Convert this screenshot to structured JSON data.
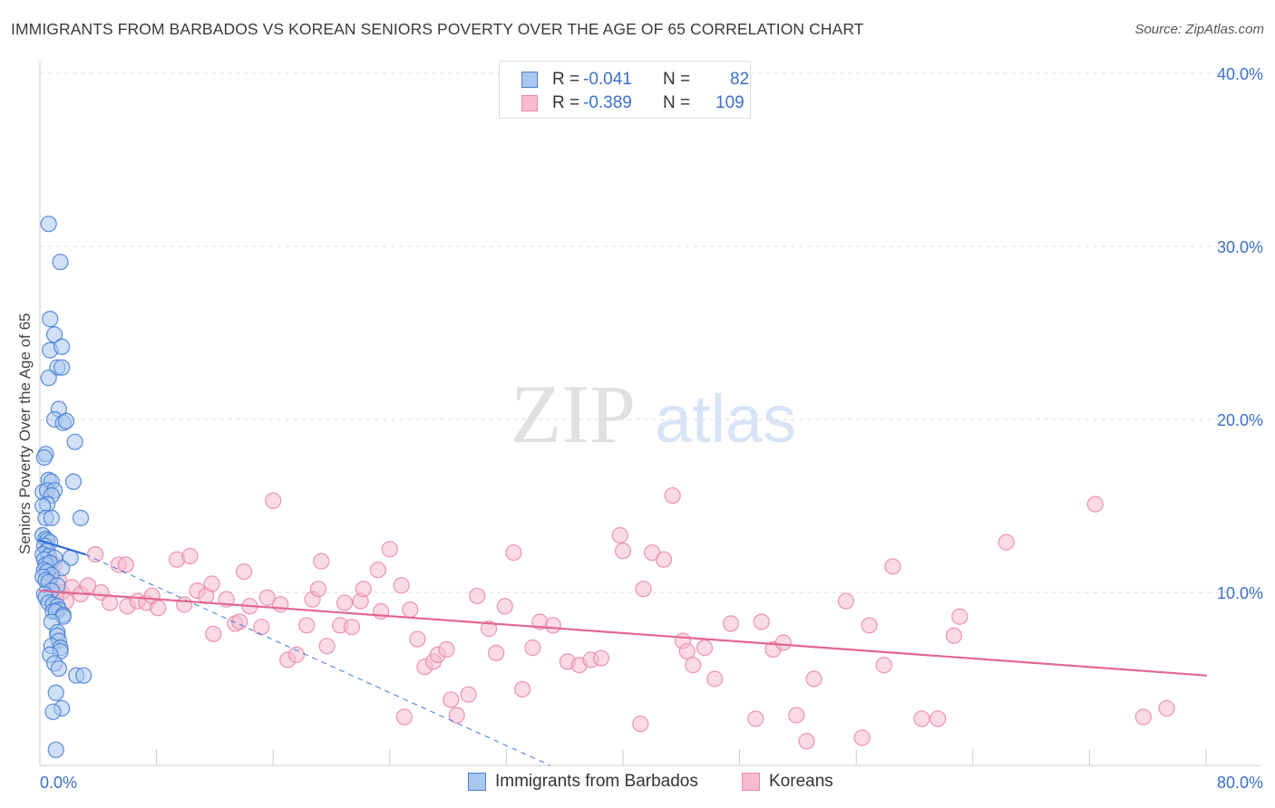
{
  "title": "IMMIGRANTS FROM BARBADOS VS KOREAN SENIORS POVERTY OVER THE AGE OF 65 CORRELATION CHART",
  "source": "Source: ZipAtlas.com",
  "watermark": {
    "zip": "ZIP",
    "atlas": "atlas"
  },
  "legend": {
    "series": [
      {
        "r_label": "R =",
        "r_value": "-0.041",
        "n_label": "N =",
        "n_value": "82"
      },
      {
        "r_label": "R =",
        "r_value": "-0.389",
        "n_label": "N =",
        "n_value": "109"
      }
    ]
  },
  "colors": {
    "blue_fill": "#a9c6ef",
    "blue_stroke": "#4a7fd6",
    "blue_line": "#2e6fd8",
    "pink_fill": "#f6bccd",
    "pink_stroke": "#e889a8",
    "pink_line": "#e2668f",
    "tick_label": "#3a6fc9",
    "grid": "#dcdcdc"
  },
  "chart_data": {
    "type": "scatter",
    "title": "IMMIGRANTS FROM BARBADOS VS KOREAN SENIORS POVERTY OVER THE AGE OF 65 CORRELATION CHART",
    "xlabel": "",
    "ylabel": "Seniors Poverty Over the Age of 65",
    "xlim": [
      0,
      80
    ],
    "ylim": [
      0,
      42
    ],
    "x_tick_labels": [
      {
        "value": 0,
        "label": "0.0%"
      },
      {
        "value": 80,
        "label": "80.0%"
      }
    ],
    "y_tick_labels": [
      {
        "value": 10,
        "label": "10.0%"
      },
      {
        "value": 20,
        "label": "20.0%"
      },
      {
        "value": 30,
        "label": "30.0%"
      },
      {
        "value": 40,
        "label": "40.0%"
      }
    ],
    "series": [
      {
        "name": "Immigrants from Barbados",
        "color": "blue",
        "trend_line": {
          "x": [
            0,
            3.1
          ],
          "y": [
            13.0,
            12.2
          ],
          "style": "solid"
        },
        "trend_extension": {
          "x": [
            3.1,
            35.0
          ],
          "y": [
            12.2,
            0.0
          ],
          "style": "dashed"
        },
        "points": [
          [
            0.6,
            31.3
          ],
          [
            1.4,
            29.1
          ],
          [
            0.7,
            25.8
          ],
          [
            1.0,
            24.9
          ],
          [
            0.7,
            24.0
          ],
          [
            1.5,
            24.2
          ],
          [
            1.2,
            23.0
          ],
          [
            1.5,
            23.0
          ],
          [
            0.6,
            22.4
          ],
          [
            1.3,
            20.6
          ],
          [
            1.0,
            20.0
          ],
          [
            1.6,
            19.8
          ],
          [
            1.8,
            19.9
          ],
          [
            2.4,
            18.7
          ],
          [
            0.4,
            18.0
          ],
          [
            0.3,
            17.8
          ],
          [
            0.6,
            16.5
          ],
          [
            0.8,
            16.4
          ],
          [
            2.3,
            16.4
          ],
          [
            0.2,
            15.8
          ],
          [
            0.5,
            15.9
          ],
          [
            1.0,
            15.9
          ],
          [
            0.8,
            15.6
          ],
          [
            0.5,
            15.1
          ],
          [
            0.2,
            15.0
          ],
          [
            0.4,
            14.3
          ],
          [
            0.8,
            14.3
          ],
          [
            2.8,
            14.3
          ],
          [
            0.2,
            13.3
          ],
          [
            0.4,
            13.1
          ],
          [
            0.5,
            13.0
          ],
          [
            0.7,
            12.9
          ],
          [
            0.3,
            12.7
          ],
          [
            0.5,
            12.4
          ],
          [
            0.2,
            12.2
          ],
          [
            0.6,
            12.1
          ],
          [
            1.0,
            12.0
          ],
          [
            2.1,
            12.0
          ],
          [
            0.3,
            11.9
          ],
          [
            0.4,
            11.6
          ],
          [
            0.7,
            11.7
          ],
          [
            1.5,
            11.4
          ],
          [
            0.3,
            11.3
          ],
          [
            0.5,
            11.2
          ],
          [
            0.8,
            11.0
          ],
          [
            0.2,
            10.9
          ],
          [
            0.4,
            10.7
          ],
          [
            0.6,
            10.6
          ],
          [
            1.2,
            10.4
          ],
          [
            0.8,
            10.1
          ],
          [
            0.3,
            9.9
          ],
          [
            0.4,
            9.7
          ],
          [
            0.6,
            9.4
          ],
          [
            0.9,
            9.3
          ],
          [
            1.2,
            9.2
          ],
          [
            1.3,
            9.0
          ],
          [
            0.9,
            8.9
          ],
          [
            1.1,
            8.9
          ],
          [
            1.6,
            8.7
          ],
          [
            1.6,
            8.6
          ],
          [
            0.8,
            8.3
          ],
          [
            1.2,
            7.7
          ],
          [
            1.2,
            7.5
          ],
          [
            1.3,
            7.2
          ],
          [
            0.8,
            6.9
          ],
          [
            1.4,
            6.8
          ],
          [
            1.4,
            6.6
          ],
          [
            0.7,
            6.4
          ],
          [
            1.0,
            5.9
          ],
          [
            1.3,
            5.6
          ],
          [
            2.5,
            5.2
          ],
          [
            3.0,
            5.2
          ],
          [
            1.1,
            4.2
          ],
          [
            1.5,
            3.3
          ],
          [
            0.9,
            3.1
          ],
          [
            1.1,
            0.9
          ]
        ]
      },
      {
        "name": "Koreans",
        "color": "pink",
        "trend_line": {
          "x": [
            0,
            80
          ],
          "y": [
            10.1,
            5.2
          ],
          "style": "solid"
        },
        "points": [
          [
            0.7,
            10.7
          ],
          [
            1.0,
            11.6
          ],
          [
            1.3,
            10.7
          ],
          [
            1.5,
            10.0
          ],
          [
            1.8,
            9.5
          ],
          [
            1.1,
            9.8
          ],
          [
            2.2,
            10.3
          ],
          [
            2.8,
            9.9
          ],
          [
            3.3,
            10.4
          ],
          [
            3.8,
            12.2
          ],
          [
            4.2,
            10.0
          ],
          [
            4.8,
            9.4
          ],
          [
            5.4,
            11.6
          ],
          [
            6.0,
            9.2
          ],
          [
            5.9,
            11.6
          ],
          [
            6.7,
            9.5
          ],
          [
            7.3,
            9.4
          ],
          [
            7.7,
            9.8
          ],
          [
            8.1,
            9.1
          ],
          [
            9.4,
            11.9
          ],
          [
            9.9,
            9.3
          ],
          [
            10.3,
            12.1
          ],
          [
            10.8,
            10.1
          ],
          [
            11.4,
            9.8
          ],
          [
            11.8,
            10.5
          ],
          [
            11.9,
            7.6
          ],
          [
            12.8,
            9.6
          ],
          [
            13.4,
            8.2
          ],
          [
            13.7,
            8.3
          ],
          [
            14.0,
            11.2
          ],
          [
            14.4,
            9.2
          ],
          [
            15.2,
            8.0
          ],
          [
            15.6,
            9.7
          ],
          [
            16.0,
            15.3
          ],
          [
            16.5,
            9.3
          ],
          [
            17.0,
            6.1
          ],
          [
            17.6,
            6.4
          ],
          [
            18.3,
            8.1
          ],
          [
            18.7,
            9.6
          ],
          [
            19.1,
            10.2
          ],
          [
            19.3,
            11.8
          ],
          [
            19.7,
            6.9
          ],
          [
            20.6,
            8.1
          ],
          [
            20.9,
            9.4
          ],
          [
            21.4,
            8.0
          ],
          [
            22.0,
            9.5
          ],
          [
            22.2,
            10.2
          ],
          [
            23.2,
            11.3
          ],
          [
            23.4,
            8.9
          ],
          [
            24.0,
            12.5
          ],
          [
            24.8,
            10.4
          ],
          [
            25.0,
            2.8
          ],
          [
            25.4,
            9.0
          ],
          [
            25.9,
            7.3
          ],
          [
            26.4,
            5.7
          ],
          [
            27.0,
            6.0
          ],
          [
            27.3,
            6.4
          ],
          [
            27.9,
            6.7
          ],
          [
            28.2,
            3.8
          ],
          [
            28.6,
            2.9
          ],
          [
            29.4,
            4.1
          ],
          [
            30.0,
            9.8
          ],
          [
            30.8,
            7.9
          ],
          [
            31.3,
            6.5
          ],
          [
            31.9,
            9.2
          ],
          [
            32.5,
            12.3
          ],
          [
            33.1,
            4.4
          ],
          [
            33.8,
            6.8
          ],
          [
            34.3,
            8.3
          ],
          [
            35.2,
            8.1
          ],
          [
            36.2,
            6.0
          ],
          [
            37.0,
            5.8
          ],
          [
            37.8,
            6.1
          ],
          [
            38.5,
            6.2
          ],
          [
            39.8,
            13.3
          ],
          [
            40.0,
            12.4
          ],
          [
            41.2,
            2.4
          ],
          [
            41.4,
            10.2
          ],
          [
            42.0,
            12.3
          ],
          [
            42.8,
            11.9
          ],
          [
            43.4,
            15.6
          ],
          [
            44.1,
            7.2
          ],
          [
            44.4,
            6.6
          ],
          [
            44.8,
            5.8
          ],
          [
            45.6,
            6.8
          ],
          [
            46.3,
            5.0
          ],
          [
            47.4,
            8.2
          ],
          [
            49.1,
            2.7
          ],
          [
            49.5,
            8.3
          ],
          [
            50.3,
            6.7
          ],
          [
            51.0,
            7.1
          ],
          [
            51.9,
            2.9
          ],
          [
            52.6,
            1.4
          ],
          [
            53.1,
            5.0
          ],
          [
            55.3,
            9.5
          ],
          [
            56.4,
            1.6
          ],
          [
            56.9,
            8.1
          ],
          [
            57.9,
            5.8
          ],
          [
            58.5,
            11.5
          ],
          [
            60.5,
            2.7
          ],
          [
            61.6,
            2.7
          ],
          [
            62.7,
            7.5
          ],
          [
            63.1,
            8.6
          ],
          [
            66.3,
            12.9
          ],
          [
            72.4,
            15.1
          ],
          [
            75.7,
            2.8
          ],
          [
            77.3,
            3.3
          ]
        ]
      }
    ],
    "legend": [
      "Immigrants from Barbados",
      "Koreans"
    ]
  }
}
